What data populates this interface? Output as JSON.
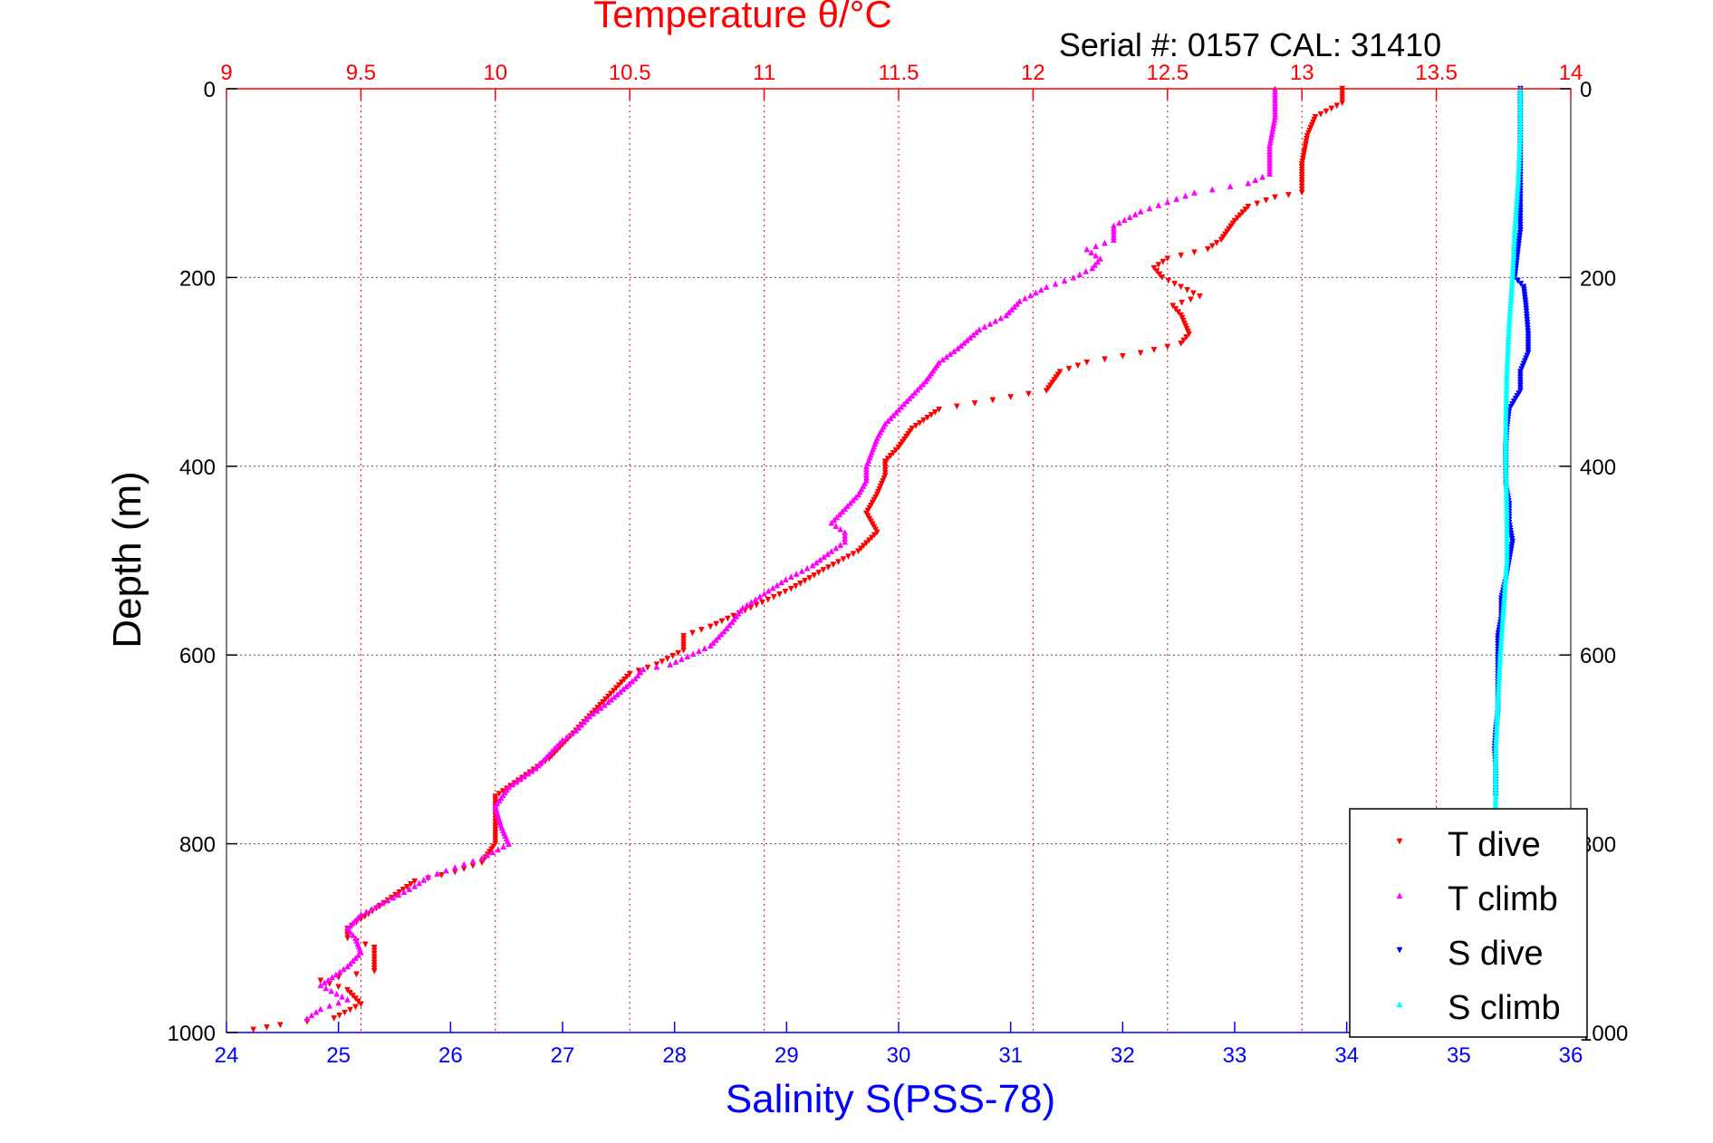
{
  "chart_data": {
    "type": "scatter",
    "title": "Temperature θ/°C",
    "subtitle": "Serial #: 0157  CAL: 31410",
    "xlabel": "Salinity S(PSS-78)",
    "ylabel": "Depth (m)",
    "top_axis": {
      "label": "Temperature θ/°C",
      "range": [
        9,
        14
      ],
      "ticks": [
        9,
        9.5,
        10,
        10.5,
        11,
        11.5,
        12,
        12.5,
        13,
        13.5,
        14
      ],
      "color": "#ff0000"
    },
    "bottom_axis": {
      "label": "Salinity S(PSS-78)",
      "range": [
        24,
        36
      ],
      "ticks": [
        24,
        25,
        26,
        27,
        28,
        29,
        30,
        31,
        32,
        33,
        34,
        35,
        36
      ],
      "color": "#0000ff"
    },
    "y_axis": {
      "range": [
        0,
        1000
      ],
      "reversed": true,
      "ticks": [
        0,
        200,
        400,
        600,
        800,
        1000
      ]
    },
    "grid": true,
    "legend_position": "bottom-right",
    "series": [
      {
        "name": "T dive",
        "axis": "temperature",
        "color": "#ff0000",
        "marker": "triangle-down",
        "points": [
          [
            13.15,
            0
          ],
          [
            13.15,
            15
          ],
          [
            13.05,
            30
          ],
          [
            13.02,
            50
          ],
          [
            13.0,
            80
          ],
          [
            13.0,
            100
          ],
          [
            13.0,
            110
          ],
          [
            12.9,
            115
          ],
          [
            12.8,
            125
          ],
          [
            12.75,
            140
          ],
          [
            12.7,
            160
          ],
          [
            12.65,
            170
          ],
          [
            12.5,
            180
          ],
          [
            12.45,
            190
          ],
          [
            12.48,
            200
          ],
          [
            12.55,
            210
          ],
          [
            12.62,
            220
          ],
          [
            12.52,
            230
          ],
          [
            12.55,
            240
          ],
          [
            12.58,
            260
          ],
          [
            12.55,
            270
          ],
          [
            12.4,
            280
          ],
          [
            12.2,
            290
          ],
          [
            12.1,
            300
          ],
          [
            12.05,
            320
          ],
          [
            11.85,
            330
          ],
          [
            11.65,
            340
          ],
          [
            11.55,
            360
          ],
          [
            11.5,
            380
          ],
          [
            11.45,
            395
          ],
          [
            11.45,
            410
          ],
          [
            11.42,
            430
          ],
          [
            11.38,
            450
          ],
          [
            11.42,
            470
          ],
          [
            11.35,
            490
          ],
          [
            11.22,
            510
          ],
          [
            11.1,
            530
          ],
          [
            10.95,
            550
          ],
          [
            10.8,
            570
          ],
          [
            10.7,
            580
          ],
          [
            10.7,
            595
          ],
          [
            10.6,
            610
          ],
          [
            10.5,
            620
          ],
          [
            10.45,
            635
          ],
          [
            10.4,
            650
          ],
          [
            10.35,
            665
          ],
          [
            10.3,
            680
          ],
          [
            10.25,
            695
          ],
          [
            10.2,
            710
          ],
          [
            10.1,
            730
          ],
          [
            10.0,
            750
          ],
          [
            10.0,
            770
          ],
          [
            10.0,
            780
          ],
          [
            10.0,
            800
          ],
          [
            9.95,
            820
          ],
          [
            9.85,
            830
          ],
          [
            9.7,
            840
          ],
          [
            9.6,
            860
          ],
          [
            9.5,
            880
          ],
          [
            9.45,
            890
          ],
          [
            9.45,
            900
          ],
          [
            9.55,
            910
          ],
          [
            9.55,
            920
          ],
          [
            9.55,
            935
          ],
          [
            9.35,
            945
          ],
          [
            9.45,
            955
          ],
          [
            9.5,
            970
          ],
          [
            9.4,
            985
          ],
          [
            9.2,
            992
          ],
          [
            9.1,
            997
          ]
        ]
      },
      {
        "name": "T climb",
        "axis": "temperature",
        "color": "#ff00ff",
        "marker": "triangle-up",
        "points": [
          [
            12.9,
            0
          ],
          [
            12.9,
            30
          ],
          [
            12.88,
            60
          ],
          [
            12.88,
            90
          ],
          [
            12.8,
            100
          ],
          [
            12.6,
            110
          ],
          [
            12.5,
            120
          ],
          [
            12.4,
            130
          ],
          [
            12.3,
            145
          ],
          [
            12.3,
            160
          ],
          [
            12.2,
            170
          ],
          [
            12.25,
            180
          ],
          [
            12.22,
            190
          ],
          [
            12.15,
            200
          ],
          [
            12.05,
            210
          ],
          [
            11.95,
            225
          ],
          [
            11.9,
            240
          ],
          [
            11.8,
            255
          ],
          [
            11.72,
            275
          ],
          [
            11.65,
            290
          ],
          [
            11.6,
            310
          ],
          [
            11.55,
            325
          ],
          [
            11.5,
            340
          ],
          [
            11.45,
            355
          ],
          [
            11.42,
            370
          ],
          [
            11.4,
            385
          ],
          [
            11.38,
            400
          ],
          [
            11.38,
            415
          ],
          [
            11.35,
            430
          ],
          [
            11.3,
            445
          ],
          [
            11.25,
            460
          ],
          [
            11.3,
            470
          ],
          [
            11.3,
            480
          ],
          [
            11.25,
            490
          ],
          [
            11.18,
            505
          ],
          [
            11.08,
            520
          ],
          [
            11.0,
            535
          ],
          [
            10.92,
            550
          ],
          [
            10.88,
            565
          ],
          [
            10.85,
            575
          ],
          [
            10.8,
            590
          ],
          [
            10.65,
            610
          ],
          [
            10.55,
            615
          ],
          [
            10.52,
            625
          ],
          [
            10.42,
            650
          ],
          [
            10.35,
            665
          ],
          [
            10.3,
            680
          ],
          [
            10.25,
            690
          ],
          [
            10.2,
            705
          ],
          [
            10.15,
            720
          ],
          [
            10.05,
            740
          ],
          [
            10.0,
            760
          ],
          [
            10.02,
            780
          ],
          [
            10.05,
            800
          ],
          [
            9.95,
            815
          ],
          [
            9.85,
            825
          ],
          [
            9.75,
            835
          ],
          [
            9.7,
            845
          ],
          [
            9.6,
            860
          ],
          [
            9.5,
            875
          ],
          [
            9.45,
            890
          ],
          [
            9.48,
            900
          ],
          [
            9.5,
            915
          ],
          [
            9.45,
            930
          ],
          [
            9.35,
            950
          ],
          [
            9.45,
            965
          ],
          [
            9.35,
            975
          ],
          [
            9.3,
            985
          ]
        ]
      },
      {
        "name": "S dive",
        "axis": "salinity",
        "color": "#0000ff",
        "marker": "triangle-down",
        "points": [
          [
            35.55,
            0
          ],
          [
            35.55,
            50
          ],
          [
            35.55,
            100
          ],
          [
            35.55,
            150
          ],
          [
            35.52,
            180
          ],
          [
            35.5,
            200
          ],
          [
            35.58,
            210
          ],
          [
            35.6,
            230
          ],
          [
            35.62,
            260
          ],
          [
            35.62,
            280
          ],
          [
            35.55,
            300
          ],
          [
            35.55,
            320
          ],
          [
            35.45,
            340
          ],
          [
            35.43,
            360
          ],
          [
            35.42,
            380
          ],
          [
            35.42,
            400
          ],
          [
            35.42,
            420
          ],
          [
            35.45,
            440
          ],
          [
            35.45,
            460
          ],
          [
            35.48,
            480
          ],
          [
            35.45,
            500
          ],
          [
            35.42,
            520
          ],
          [
            35.38,
            540
          ],
          [
            35.38,
            560
          ],
          [
            35.35,
            580
          ],
          [
            35.35,
            600
          ],
          [
            35.35,
            620
          ],
          [
            35.35,
            640
          ],
          [
            35.35,
            660
          ],
          [
            35.33,
            680
          ],
          [
            35.32,
            700
          ],
          [
            35.33,
            720
          ],
          [
            35.33,
            750
          ]
        ]
      },
      {
        "name": "S climb",
        "axis": "salinity",
        "color": "#00ffff",
        "marker": "triangle-up",
        "points": [
          [
            35.55,
            0
          ],
          [
            35.55,
            50
          ],
          [
            35.53,
            100
          ],
          [
            35.5,
            150
          ],
          [
            35.48,
            200
          ],
          [
            35.45,
            250
          ],
          [
            35.43,
            300
          ],
          [
            35.42,
            350
          ],
          [
            35.42,
            400
          ],
          [
            35.43,
            450
          ],
          [
            35.43,
            500
          ],
          [
            35.4,
            550
          ],
          [
            35.37,
            600
          ],
          [
            35.35,
            650
          ],
          [
            35.33,
            700
          ],
          [
            35.33,
            750
          ],
          [
            35.32,
            800
          ],
          [
            35.3,
            850
          ],
          [
            35.28,
            900
          ],
          [
            35.25,
            950
          ],
          [
            35.2,
            1000
          ]
        ]
      }
    ]
  }
}
